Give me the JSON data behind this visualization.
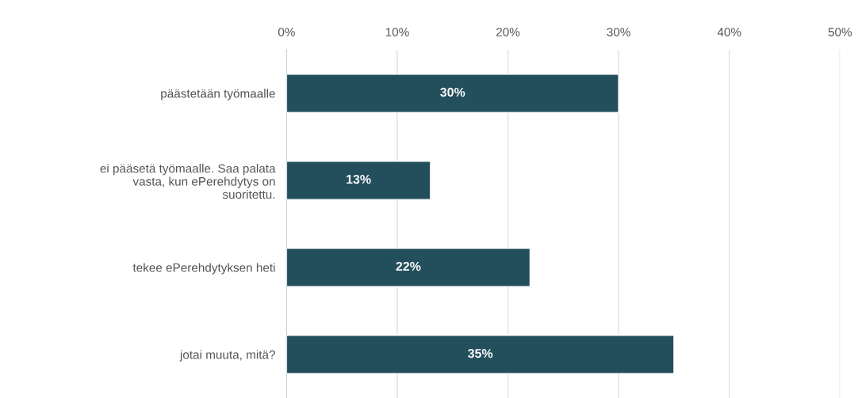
{
  "chart_data": {
    "type": "bar",
    "orientation": "horizontal",
    "categories": [
      "päästetään työmaalle",
      "ei pääsetä työmaalle. Saa palata\nvasta, kun ePerehdytys on\nsuoritettu.",
      "tekee ePerehdytyksen heti",
      "jotai muuta, mitä?"
    ],
    "values": [
      30,
      13,
      22,
      35
    ],
    "value_labels": [
      "30%",
      "13%",
      "22%",
      "35%"
    ],
    "color": "#234e5c",
    "xlim": [
      0,
      50
    ],
    "xticks": [
      {
        "value": 0,
        "label": "0%"
      },
      {
        "value": 10,
        "label": "10%"
      },
      {
        "value": 20,
        "label": "20%"
      },
      {
        "value": 30,
        "label": "30%"
      },
      {
        "value": 40,
        "label": "40%"
      },
      {
        "value": 50,
        "label": "50%"
      }
    ],
    "grid": "x",
    "legend": false
  }
}
